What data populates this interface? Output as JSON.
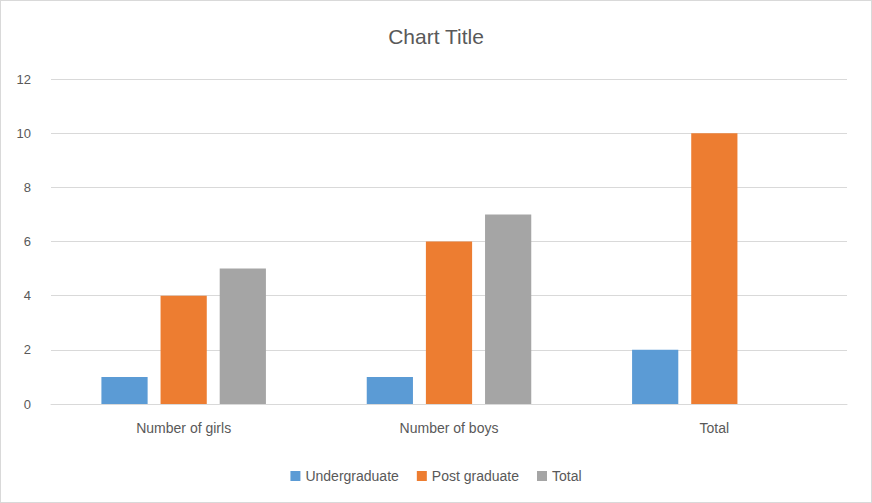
{
  "chart_data": {
    "type": "bar",
    "title": "Chart Title",
    "categories": [
      "Number of girls",
      "Number of boys",
      "Total"
    ],
    "series": [
      {
        "name": "Undergraduate",
        "color": "#5b9bd5",
        "values": [
          1,
          1,
          2
        ]
      },
      {
        "name": "Post graduate",
        "color": "#ed7d31",
        "values": [
          4,
          6,
          10
        ]
      },
      {
        "name": "Total",
        "color": "#a5a5a5",
        "values": [
          5,
          7,
          null
        ]
      }
    ],
    "ylim": [
      0,
      12
    ],
    "yticks": [
      0,
      2,
      4,
      6,
      8,
      10,
      12
    ],
    "grid": true,
    "legend": "bottom"
  }
}
